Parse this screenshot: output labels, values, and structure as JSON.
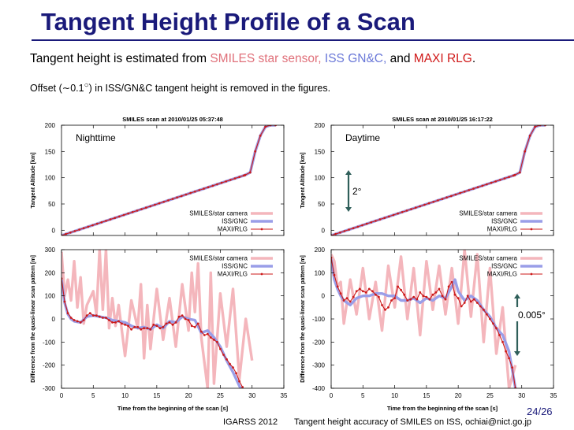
{
  "header": {
    "title": "Tangent Height Profile of a Scan"
  },
  "body_text": {
    "line1_prefix": "Tangent height is estimated from ",
    "line1_source1": "SMILES star sensor,",
    "line1_source2": " ISS GN&C,",
    "line1_and": " and ",
    "line1_source3": "MAXI RLG",
    "line1_end": ".",
    "line2_prefix": "Offset (∼0.1",
    "line2_degree": "○",
    "line2_suffix": ") in ISS/GN&C tangent height is removed in the figures."
  },
  "colors": {
    "title": "#1a1a7a",
    "star_camera": "#f4b6bc",
    "iss_gnc": "#9a9ee8",
    "maxi_rlg": "#cc1a1a",
    "annotation_arrow": "#2f5f5a"
  },
  "footer": {
    "conference": "IGARSS 2012",
    "paper": "Tangent height accuracy of SMILES on ISS, ochiai@nict.go.jp",
    "page": "24/26"
  },
  "chart_data": [
    {
      "type": "line",
      "title": "SMILES scan at 2010/01/25 05:37:48",
      "annotation": "Nighttime",
      "ylabel": "Tangent Altitude [km]",
      "xlim": [
        0,
        35
      ],
      "ylim": [
        -10,
        200
      ],
      "yticks": [
        0,
        50,
        100,
        150,
        200
      ],
      "legend_position": "bottom-right",
      "series": [
        {
          "name": "SMILES/star camera",
          "x": [
            0,
            28.9,
            29.7,
            30.5,
            31.3,
            32.1,
            32.9,
            33.7
          ],
          "y": [
            -10,
            105,
            110,
            150,
            180,
            197,
            200,
            200
          ]
        },
        {
          "name": "ISS/GNC",
          "x": [
            0,
            28.9,
            29.7,
            30.5,
            31.3,
            32.1,
            32.9,
            33.7
          ],
          "y": [
            -10,
            105,
            110,
            150,
            180,
            197,
            200,
            200
          ]
        },
        {
          "name": "MAXI/RLG",
          "x": [
            0,
            28.9,
            29.7,
            30.5,
            31.3,
            32.1,
            32.9,
            33.7
          ],
          "y": [
            -10,
            105,
            110,
            150,
            180,
            197,
            200,
            200
          ]
        }
      ]
    },
    {
      "type": "line",
      "title": "SMILES scan at 2010/01/25 16:17:22",
      "annotation": "Daytime",
      "scale_annotation": "2°",
      "ylabel": "Tangent Altitude [km]",
      "xlim": [
        0,
        35
      ],
      "ylim": [
        -10,
        200
      ],
      "yticks": [
        0,
        50,
        100,
        150,
        200
      ],
      "legend_position": "bottom-right",
      "series": [
        {
          "name": "SMILES/star camera",
          "x": [
            0,
            28.9,
            29.7,
            30.5,
            31.3,
            32.1,
            32.9,
            33.7
          ],
          "y": [
            -10,
            105,
            110,
            150,
            180,
            197,
            200,
            200
          ]
        },
        {
          "name": "ISS/GNC",
          "x": [
            0,
            28.9,
            29.7,
            30.5,
            31.3,
            32.1,
            32.9,
            33.7
          ],
          "y": [
            -10,
            105,
            110,
            150,
            180,
            197,
            200,
            200
          ]
        },
        {
          "name": "MAXI/RLG",
          "x": [
            0,
            28.9,
            29.7,
            30.5,
            31.3,
            32.1,
            32.9,
            33.7
          ],
          "y": [
            -10,
            105,
            110,
            150,
            180,
            197,
            200,
            200
          ]
        }
      ]
    },
    {
      "type": "line",
      "xlabel": "Time from the beginning of the scan [s]",
      "ylabel": "Difference from the quasi-linear scan pattern [m]",
      "xlim": [
        0,
        35
      ],
      "ylim": [
        -300,
        300
      ],
      "xticks": [
        0,
        5,
        10,
        15,
        20,
        25,
        30,
        35
      ],
      "yticks": [
        -300,
        -200,
        -100,
        0,
        100,
        200,
        300
      ],
      "legend_position": "top-right",
      "series": [
        {
          "name": "SMILES/star camera",
          "x": [
            0,
            0.5,
            1,
            1.5,
            2,
            2.5,
            3,
            3.5,
            4,
            5,
            5.5,
            6,
            6.5,
            7,
            7.5,
            8,
            8.5,
            9,
            10,
            11,
            12,
            12.5,
            13,
            13.5,
            14,
            15,
            16,
            17,
            18,
            19,
            20,
            20.5,
            21,
            21.5,
            22,
            23,
            23.5,
            24,
            25,
            26,
            27,
            28,
            29,
            30
          ],
          "y": [
            290,
            100,
            170,
            80,
            250,
            50,
            180,
            -20,
            60,
            120,
            20,
            300,
            40,
            300,
            -40,
            90,
            -30,
            60,
            -160,
            80,
            -40,
            150,
            -170,
            60,
            -130,
            130,
            -90,
            90,
            -120,
            150,
            -50,
            200,
            30,
            240,
            -80,
            -300,
            200,
            -280,
            110,
            -120,
            130,
            -260,
            0,
            -180
          ]
        },
        {
          "name": "ISS/GNC",
          "x": [
            0,
            0.5,
            1,
            1.5,
            2,
            3,
            4,
            5,
            6,
            7,
            8,
            9,
            10,
            11,
            12,
            13,
            14,
            15,
            16,
            17,
            18,
            19,
            20,
            21,
            22,
            23,
            24,
            25,
            26,
            27,
            28,
            29,
            29.5
          ],
          "y": [
            170,
            70,
            20,
            0,
            -10,
            -15,
            10,
            15,
            10,
            5,
            -5,
            -10,
            -15,
            -30,
            -40,
            -35,
            -45,
            -25,
            -40,
            -10,
            -15,
            10,
            0,
            -5,
            -60,
            -50,
            -80,
            -120,
            -180,
            -230,
            -290,
            -340,
            -360
          ]
        },
        {
          "name": "MAXI/RLG",
          "x": [
            0,
            0.5,
            1,
            1.5,
            2,
            2.5,
            3,
            3.5,
            4,
            4.5,
            5,
            5.5,
            6,
            6.5,
            7,
            7.5,
            8,
            8.5,
            9,
            9.5,
            10,
            10.5,
            11,
            11.5,
            12,
            12.5,
            13,
            13.5,
            14,
            14.5,
            15,
            15.5,
            16,
            16.5,
            17,
            17.5,
            18,
            18.5,
            19,
            19.5,
            20,
            20.5,
            21,
            21.5,
            22,
            22.5,
            23,
            23.5,
            24,
            24.5,
            25,
            25.5,
            26,
            26.5,
            27,
            27.5,
            28,
            28.5,
            29,
            29.5
          ],
          "y": [
            175,
            75,
            25,
            5,
            -5,
            -10,
            -15,
            -5,
            15,
            25,
            15,
            15,
            10,
            5,
            5,
            -5,
            -15,
            -15,
            -10,
            -20,
            -25,
            -30,
            -45,
            -35,
            -35,
            -45,
            -40,
            -40,
            -45,
            -25,
            -30,
            -40,
            -35,
            -20,
            -15,
            -25,
            -15,
            10,
            15,
            0,
            -5,
            -30,
            -35,
            -20,
            -55,
            -70,
            -65,
            -80,
            -90,
            -100,
            -130,
            -155,
            -175,
            -195,
            -210,
            -235,
            -270,
            -295,
            -330,
            -360
          ]
        }
      ]
    },
    {
      "type": "line",
      "xlabel": "Time from the beginning of the scan [s]",
      "ylabel": "Difference from the quasi-linear scan pattern [m]",
      "scale_annotation": "0.005°",
      "xlim": [
        0,
        35
      ],
      "ylim": [
        -400,
        200
      ],
      "xticks": [
        0,
        5,
        10,
        15,
        20,
        25,
        30,
        35
      ],
      "yticks": [
        -400,
        -300,
        -200,
        -100,
        0,
        100,
        200
      ],
      "legend_position": "top-right",
      "series": [
        {
          "name": "SMILES/star camera",
          "x": [
            0,
            0.5,
            1,
            1.5,
            2,
            3,
            4,
            5,
            6,
            7,
            8,
            9,
            10,
            11,
            12,
            13,
            14,
            15,
            16,
            17,
            18,
            19,
            20,
            21,
            22,
            23,
            24,
            25,
            26,
            27,
            28,
            29
          ],
          "y": [
            180,
            150,
            40,
            60,
            -120,
            70,
            -80,
            120,
            -100,
            60,
            -150,
            130,
            -50,
            170,
            -100,
            120,
            -170,
            150,
            -60,
            130,
            -80,
            120,
            -120,
            200,
            -90,
            180,
            -200,
            120,
            -250,
            -50,
            -400,
            -300
          ]
        },
        {
          "name": "ISS/GNC",
          "x": [
            0,
            0.5,
            1,
            1.5,
            2,
            3,
            4,
            5,
            6,
            7,
            8,
            9,
            10,
            11,
            12,
            13,
            14,
            15,
            16,
            17,
            18,
            19,
            19.5,
            20,
            21,
            22,
            23,
            24,
            25,
            26,
            27,
            28,
            29
          ],
          "y": [
            160,
            70,
            30,
            0,
            -20,
            -40,
            -10,
            0,
            0,
            10,
            10,
            0,
            0,
            -20,
            -20,
            -10,
            -30,
            -10,
            -20,
            0,
            -10,
            40,
            70,
            20,
            -20,
            0,
            -20,
            -60,
            -90,
            -140,
            -170,
            -240,
            -400
          ]
        },
        {
          "name": "MAXI/RLG",
          "x": [
            0,
            0.5,
            1,
            1.5,
            2,
            2.5,
            3,
            3.5,
            4,
            4.5,
            5,
            5.5,
            6,
            6.5,
            7,
            7.5,
            8,
            8.5,
            9,
            9.5,
            10,
            10.5,
            11,
            11.5,
            12,
            12.5,
            13,
            13.5,
            14,
            14.5,
            15,
            15.5,
            16,
            16.5,
            17,
            17.5,
            18,
            18.5,
            19,
            19.5,
            20,
            20.5,
            21,
            21.5,
            22,
            22.5,
            23,
            23.5,
            24,
            24.5,
            25,
            25.5,
            26,
            26.5,
            27,
            27.5,
            28,
            28.5,
            29
          ],
          "y": [
            165,
            90,
            40,
            10,
            -20,
            -10,
            -25,
            -5,
            20,
            30,
            20,
            15,
            30,
            20,
            5,
            -5,
            -40,
            -60,
            -50,
            -20,
            -10,
            40,
            25,
            5,
            -20,
            -15,
            -5,
            -15,
            15,
            0,
            -5,
            -15,
            5,
            15,
            30,
            0,
            -15,
            40,
            60,
            5,
            -10,
            -45,
            -30,
            0,
            -25,
            -15,
            -30,
            -45,
            -60,
            -80,
            -100,
            -120,
            -140,
            -170,
            -200,
            -240,
            -270,
            -310,
            -400
          ]
        }
      ]
    }
  ]
}
